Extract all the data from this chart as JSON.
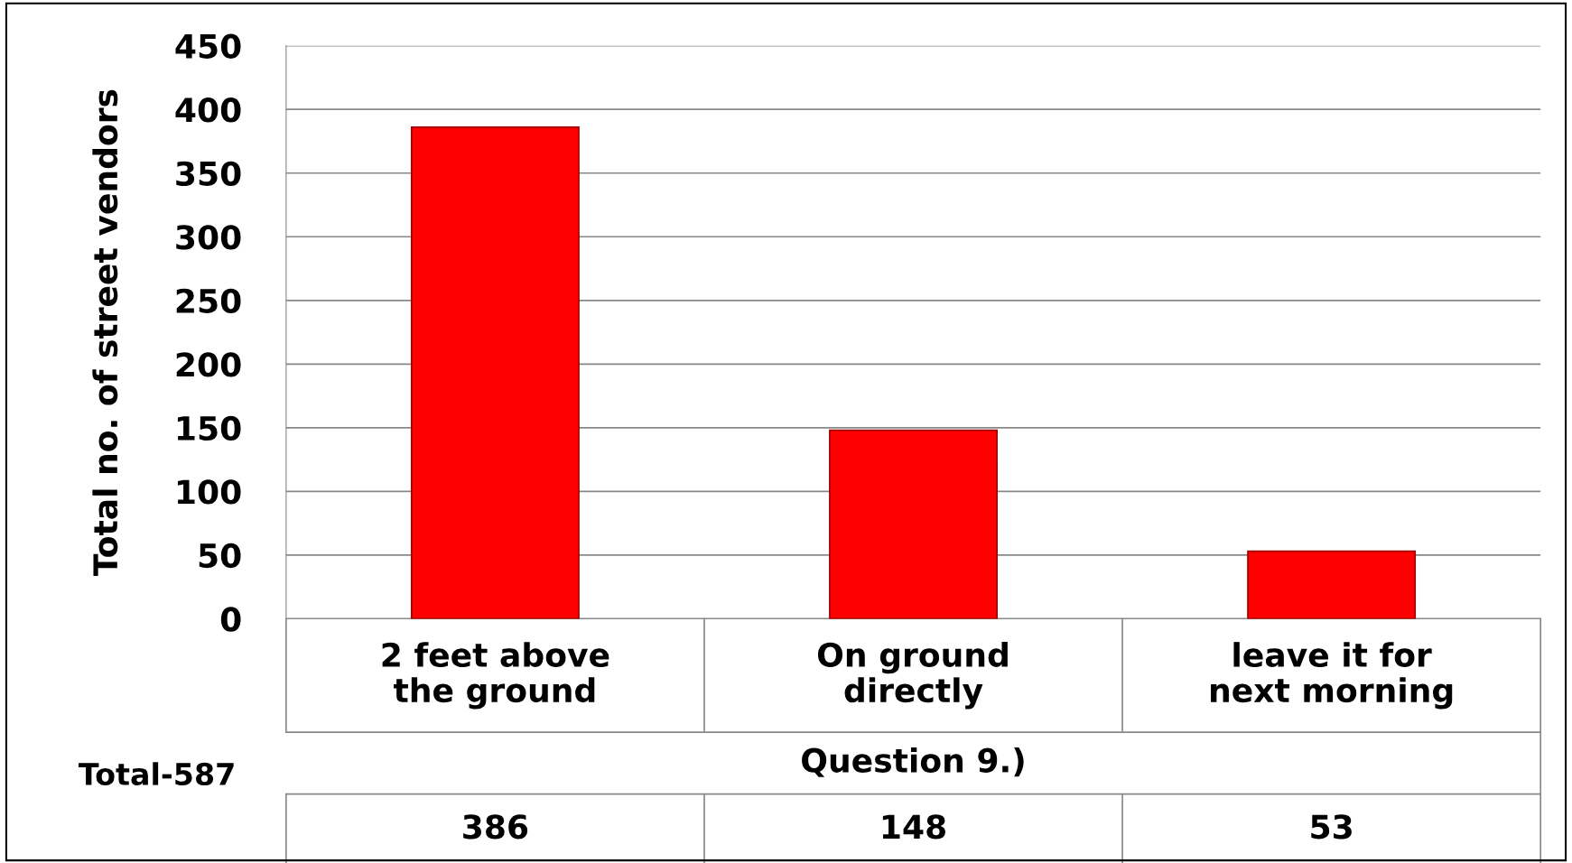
{
  "chart_data": {
    "type": "bar",
    "categories": [
      "2 feet above\nthe ground",
      "On ground\ndirectly",
      "leave it for\nnext morning"
    ],
    "values": [
      386,
      148,
      53
    ],
    "color": "#ff0000",
    "xlabel": "Question 9.)",
    "ylabel": "Total no. of street vendors",
    "ylim": [
      0,
      450
    ],
    "yticks": [
      0,
      50,
      100,
      150,
      200,
      250,
      300,
      350,
      400,
      450
    ],
    "grid": "y",
    "data_labels": true,
    "annotations": [
      "Total-587"
    ]
  }
}
